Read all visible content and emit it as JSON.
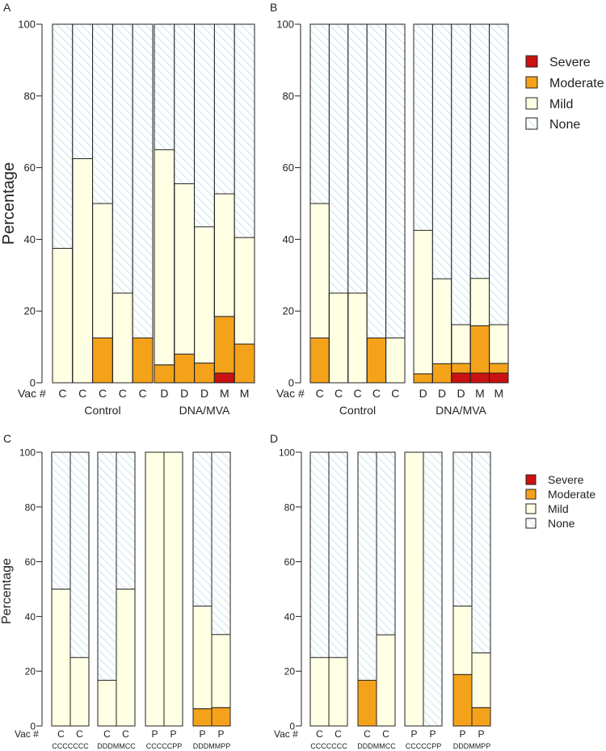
{
  "colors": {
    "severe": "#cc1111",
    "moderate": "#f5a21b",
    "mild": "#ffffe3",
    "none_fill": "#ffffff",
    "none_hatch": "#9ccde0",
    "border": "#222222"
  },
  "legend_top": [
    "Severe",
    "Moderate",
    "Mild",
    "None"
  ],
  "legend_bottom": [
    "Severe",
    "Moderate",
    "Mild",
    "None"
  ],
  "chart_data": [
    {
      "panel": "A",
      "type": "bar",
      "stacked": true,
      "ylabel": "Percentage",
      "ylim": [
        0,
        100
      ],
      "yticks": [
        "0",
        "20",
        "40",
        "60",
        "80",
        "100"
      ],
      "vac_label": "Vac #",
      "groups": [
        {
          "label": "Control",
          "bars": [
            {
              "vac": "C",
              "severe": 0,
              "moderate": 0,
              "mild": 37.5
            },
            {
              "vac": "C",
              "severe": 0,
              "moderate": 0,
              "mild": 62.5
            },
            {
              "vac": "C",
              "severe": 0,
              "moderate": 12.5,
              "mild": 37.5
            },
            {
              "vac": "C",
              "severe": 0,
              "moderate": 0,
              "mild": 25
            },
            {
              "vac": "C",
              "severe": 0,
              "moderate": 12.5,
              "mild": 0
            }
          ]
        },
        {
          "label": "DNA/MVA",
          "bars": [
            {
              "vac": "D",
              "severe": 0,
              "moderate": 5,
              "mild": 60
            },
            {
              "vac": "D",
              "severe": 0,
              "moderate": 8,
              "mild": 47.5
            },
            {
              "vac": "D",
              "severe": 0,
              "moderate": 5.5,
              "mild": 38
            },
            {
              "vac": "M",
              "severe": 2.7,
              "moderate": 15.8,
              "mild": 34.2
            },
            {
              "vac": "M",
              "severe": 0,
              "moderate": 10.8,
              "mild": 29.7
            }
          ]
        }
      ]
    },
    {
      "panel": "B",
      "type": "bar",
      "stacked": true,
      "ylim": [
        0,
        100
      ],
      "yticks": [
        "0",
        "20",
        "40",
        "60",
        "80",
        "100"
      ],
      "vac_label": "Vac #",
      "groups": [
        {
          "label": "Control",
          "bars": [
            {
              "vac": "C",
              "severe": 0,
              "moderate": 12.5,
              "mild": 37.5
            },
            {
              "vac": "C",
              "severe": 0,
              "moderate": 0,
              "mild": 25
            },
            {
              "vac": "C",
              "severe": 0,
              "moderate": 0,
              "mild": 25
            },
            {
              "vac": "C",
              "severe": 0,
              "moderate": 12.5,
              "mild": 0
            },
            {
              "vac": "C",
              "severe": 0,
              "moderate": 0,
              "mild": 12.5
            }
          ]
        },
        {
          "label": "DNA/MVA",
          "bars": [
            {
              "vac": "D",
              "severe": 0,
              "moderate": 2.5,
              "mild": 40
            },
            {
              "vac": "D",
              "severe": 0,
              "moderate": 5.3,
              "mild": 23.7
            },
            {
              "vac": "D",
              "severe": 2.7,
              "moderate": 2.7,
              "mild": 10.8
            },
            {
              "vac": "M",
              "severe": 2.7,
              "moderate": 13.2,
              "mild": 13.2
            },
            {
              "vac": "M",
              "severe": 2.7,
              "moderate": 2.7,
              "mild": 10.8
            }
          ]
        }
      ]
    },
    {
      "panel": "C",
      "type": "bar",
      "stacked": true,
      "ylabel": "Percentage",
      "ylim": [
        0,
        100
      ],
      "yticks": [
        "0",
        "20",
        "40",
        "60",
        "80",
        "100"
      ],
      "vac_label": "Vac #",
      "groups": [
        {
          "label": "CCCCCCC",
          "bars": [
            {
              "vac": "C",
              "severe": 0,
              "moderate": 0,
              "mild": 50
            },
            {
              "vac": "C",
              "severe": 0,
              "moderate": 0,
              "mild": 25
            }
          ]
        },
        {
          "label": "DDDMMCC",
          "bars": [
            {
              "vac": "C",
              "severe": 0,
              "moderate": 0,
              "mild": 16.7
            },
            {
              "vac": "C",
              "severe": 0,
              "moderate": 0,
              "mild": 50
            }
          ]
        },
        {
          "label": "CCCCCPP",
          "bars": [
            {
              "vac": "P",
              "severe": 0,
              "moderate": 0,
              "mild": 100
            },
            {
              "vac": "P",
              "severe": 0,
              "moderate": 0,
              "mild": 100
            }
          ]
        },
        {
          "label": "DDDMMPP",
          "bars": [
            {
              "vac": "P",
              "severe": 0,
              "moderate": 6.3,
              "mild": 37.5
            },
            {
              "vac": "P",
              "severe": 0,
              "moderate": 6.7,
              "mild": 26.7
            }
          ]
        }
      ]
    },
    {
      "panel": "D",
      "type": "bar",
      "stacked": true,
      "ylim": [
        0,
        100
      ],
      "yticks": [
        "0",
        "20",
        "40",
        "60",
        "80",
        "100"
      ],
      "vac_label": "Vac #",
      "groups": [
        {
          "label": "CCCCCCC",
          "bars": [
            {
              "vac": "C",
              "severe": 0,
              "moderate": 0,
              "mild": 25
            },
            {
              "vac": "C",
              "severe": 0,
              "moderate": 0,
              "mild": 25
            }
          ]
        },
        {
          "label": "DDDMMCC",
          "bars": [
            {
              "vac": "C",
              "severe": 0,
              "moderate": 16.7,
              "mild": 0
            },
            {
              "vac": "C",
              "severe": 0,
              "moderate": 0,
              "mild": 33.3
            }
          ]
        },
        {
          "label": "CCCCCPP",
          "bars": [
            {
              "vac": "P",
              "severe": 0,
              "moderate": 0,
              "mild": 100
            },
            {
              "vac": "P",
              "severe": 0,
              "moderate": 0,
              "mild": 0
            }
          ]
        },
        {
          "label": "DDDMMPP",
          "bars": [
            {
              "vac": "P",
              "severe": 0,
              "moderate": 18.8,
              "mild": 25
            },
            {
              "vac": "P",
              "severe": 0,
              "moderate": 6.7,
              "mild": 20
            }
          ]
        }
      ]
    }
  ]
}
